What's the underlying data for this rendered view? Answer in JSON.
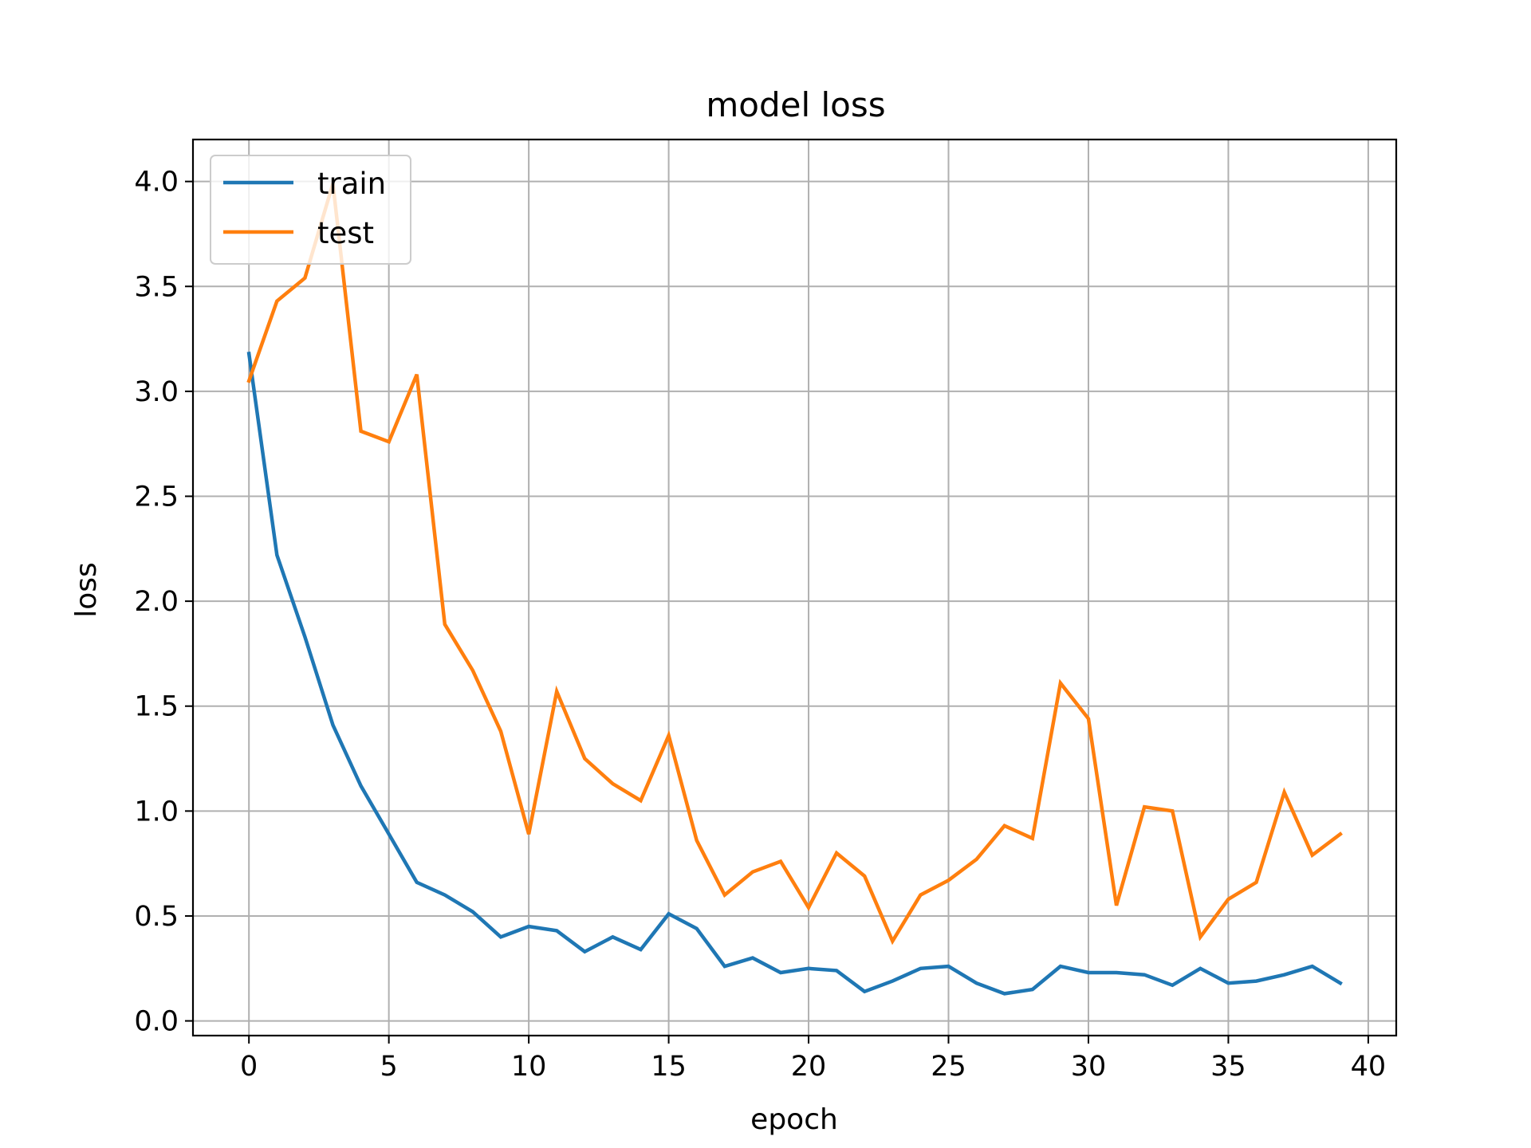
{
  "chart_data": {
    "type": "line",
    "title": "model loss",
    "xlabel": "epoch",
    "ylabel": "loss",
    "xlim": [
      -2,
      41
    ],
    "ylim": [
      -0.07,
      4.2
    ],
    "xticks": [
      0,
      5,
      10,
      15,
      20,
      25,
      30,
      35,
      40
    ],
    "yticks": [
      0.0,
      0.5,
      1.0,
      1.5,
      2.0,
      2.5,
      3.0,
      3.5,
      4.0
    ],
    "xtick_labels": [
      "0",
      "5",
      "10",
      "15",
      "20",
      "25",
      "30",
      "35",
      "40"
    ],
    "ytick_labels": [
      "0.0",
      "0.5",
      "1.0",
      "1.5",
      "2.0",
      "2.5",
      "3.0",
      "3.5",
      "4.0"
    ],
    "grid": true,
    "legend_position": "upper-left",
    "x": [
      0,
      1,
      2,
      3,
      4,
      5,
      6,
      7,
      8,
      9,
      10,
      11,
      12,
      13,
      14,
      15,
      16,
      17,
      18,
      19,
      20,
      21,
      22,
      23,
      24,
      25,
      26,
      27,
      28,
      29,
      30,
      31,
      32,
      33,
      34,
      35,
      36,
      37,
      38,
      39
    ],
    "series": [
      {
        "name": "train",
        "color": "#1f77b4",
        "values": [
          3.18,
          2.22,
          1.83,
          1.41,
          1.12,
          0.89,
          0.66,
          0.6,
          0.52,
          0.4,
          0.45,
          0.43,
          0.33,
          0.4,
          0.34,
          0.51,
          0.44,
          0.26,
          0.3,
          0.23,
          0.25,
          0.24,
          0.14,
          0.19,
          0.25,
          0.26,
          0.18,
          0.13,
          0.15,
          0.26,
          0.23,
          0.23,
          0.22,
          0.17,
          0.25,
          0.18,
          0.19,
          0.22,
          0.26,
          0.18
        ]
      },
      {
        "name": "test",
        "color": "#ff7f0e",
        "values": [
          3.05,
          3.43,
          3.54,
          3.99,
          2.81,
          2.76,
          3.08,
          1.89,
          1.67,
          1.38,
          0.89,
          1.57,
          1.25,
          1.13,
          1.05,
          1.36,
          0.86,
          0.6,
          0.71,
          0.76,
          0.54,
          0.8,
          0.69,
          0.38,
          0.6,
          0.67,
          0.77,
          0.93,
          0.87,
          1.61,
          1.44,
          0.55,
          1.02,
          1.0,
          0.4,
          0.58,
          0.66,
          1.09,
          0.79,
          0.89
        ]
      }
    ]
  }
}
